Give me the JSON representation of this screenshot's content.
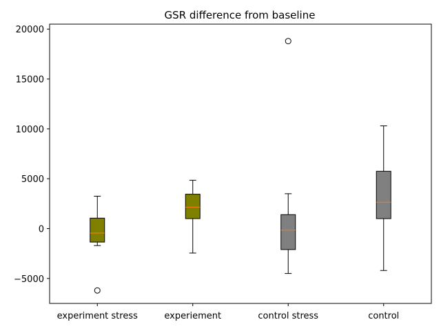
{
  "chart_data": {
    "type": "box",
    "title": "GSR difference from baseline",
    "xlabel": "",
    "ylabel": "",
    "ylim": [
      -7500,
      20500
    ],
    "yticks": [
      -5000,
      0,
      5000,
      10000,
      15000,
      20000
    ],
    "grid": false,
    "categories": [
      "experiment stress",
      "experiement",
      "control stress",
      "control"
    ],
    "boxes": [
      {
        "name": "experiment stress",
        "whisker_low": -1700,
        "q1": -1350,
        "median": -450,
        "q3": 1050,
        "whisker_high": 3250,
        "outliers": [
          -6200
        ],
        "color": "#808000"
      },
      {
        "name": "experiement",
        "whisker_low": -2450,
        "q1": 1000,
        "median": 2150,
        "q3": 3450,
        "whisker_high": 4850,
        "outliers": [],
        "color": "#808000"
      },
      {
        "name": "control stress",
        "whisker_low": -4500,
        "q1": -2100,
        "median": -150,
        "q3": 1400,
        "whisker_high": 3500,
        "outliers": [
          18800
        ],
        "color": "#808080"
      },
      {
        "name": "control",
        "whisker_low": -4200,
        "q1": 1000,
        "median": 2650,
        "q3": 5750,
        "whisker_high": 10300,
        "outliers": [],
        "color": "#808080"
      }
    ],
    "median_color": "#ff7f0e"
  }
}
